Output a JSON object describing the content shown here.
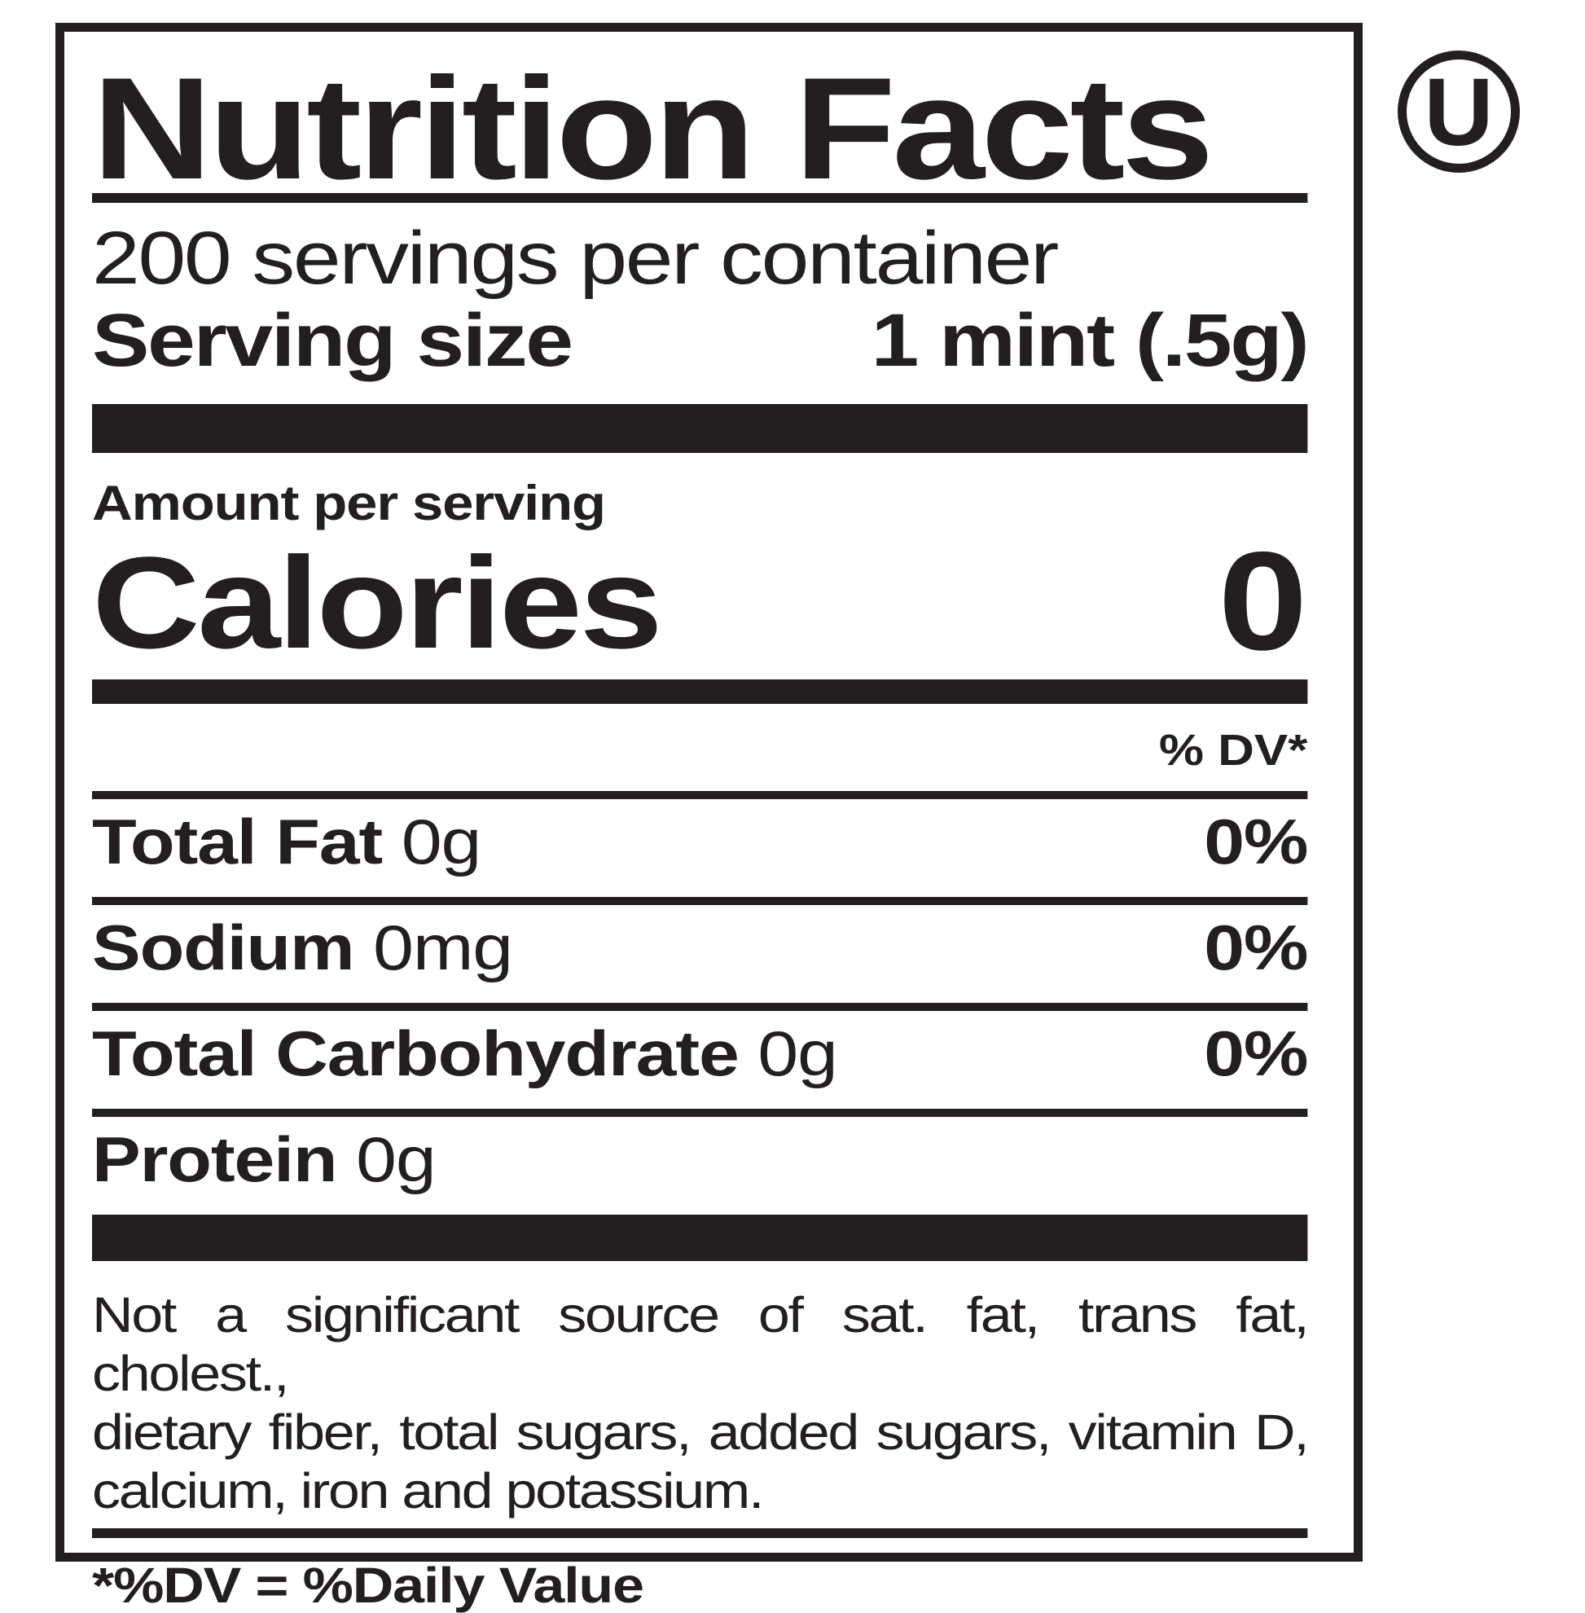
{
  "label": {
    "title": "Nutrition Facts",
    "servings_per_container": "200 servings per container",
    "serving_size_label": "Serving size",
    "serving_size_value": "1 mint (.5g)",
    "amount_per_serving": "Amount per serving",
    "calories_label": "Calories",
    "calories_value": "0",
    "dv_header": "% DV*",
    "rows": [
      {
        "name": "Total Fat",
        "value": "0g",
        "dv": "0%"
      },
      {
        "name": "Sodium",
        "value": "0mg",
        "dv": "0%"
      },
      {
        "name": "Total Carbohydrate",
        "value": "0g",
        "dv": "0%"
      },
      {
        "name": "Protein",
        "value": "0g",
        "dv": ""
      }
    ],
    "footnote_lines": [
      "Not a significant source of sat. fat, trans fat, cholest.,",
      "dietary fiber, total sugars, added sugars, vitamin D,",
      "calcium, iron and potassium."
    ],
    "dv_note": "*%DV = %Daily Value"
  },
  "kosher_symbol": "U",
  "colors": {
    "ink": "#231f20",
    "background": "#ffffff"
  }
}
